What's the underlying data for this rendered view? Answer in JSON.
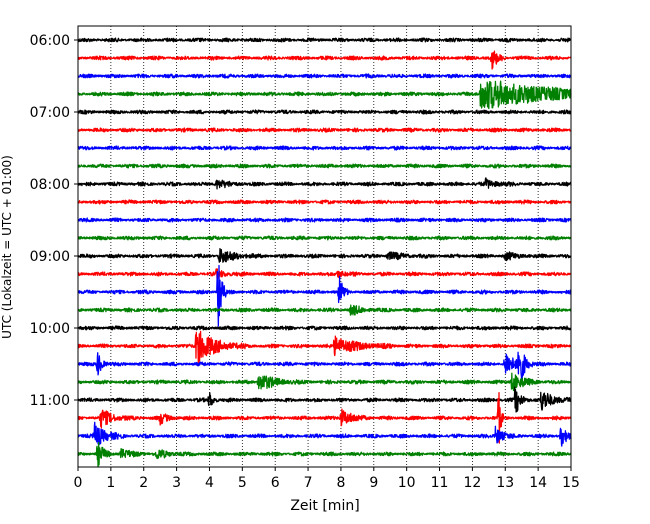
{
  "chart_data": {
    "type": "line",
    "title": "",
    "xlabel": "Zeit  [min]",
    "ylabel": "UTC (Lokalzeit = UTC + 01:00)",
    "xlim": [
      0,
      15
    ],
    "x_ticks": [
      0,
      1,
      2,
      3,
      4,
      5,
      6,
      7,
      8,
      9,
      10,
      11,
      12,
      13,
      14,
      15
    ],
    "y_tick_labels": [
      "06:00",
      "07:00",
      "08:00",
      "09:00",
      "10:00",
      "11:00"
    ],
    "grid": "vertical dotted",
    "legend": "none",
    "start_time": "06:00",
    "trace_interval_min": 15,
    "trace_count": 24,
    "trace_colors": [
      "#000000",
      "#ff0000",
      "#0000ff",
      "#008000"
    ],
    "events": [
      {
        "trace": 1,
        "t": 12.6,
        "amp": 1.1,
        "dur": 0.15
      },
      {
        "trace": 3,
        "t": 12.25,
        "amp": 1.7,
        "dur": 2.0
      },
      {
        "trace": 8,
        "t": 4.2,
        "amp": 0.5,
        "dur": 0.3
      },
      {
        "trace": 8,
        "t": 12.4,
        "amp": 0.5,
        "dur": 0.3
      },
      {
        "trace": 12,
        "t": 4.3,
        "amp": 0.8,
        "dur": 0.4
      },
      {
        "trace": 12,
        "t": 9.4,
        "amp": 0.4,
        "dur": 0.4
      },
      {
        "trace": 12,
        "t": 13.0,
        "amp": 0.4,
        "dur": 0.3
      },
      {
        "trace": 13,
        "t": 4.2,
        "amp": 0.4,
        "dur": 0.3
      },
      {
        "trace": 13,
        "t": 7.9,
        "amp": 0.4,
        "dur": 0.2
      },
      {
        "trace": 14,
        "t": 4.27,
        "amp": 6.0,
        "dur": 0.08
      },
      {
        "trace": 14,
        "t": 7.95,
        "amp": 1.8,
        "dur": 0.1
      },
      {
        "trace": 15,
        "t": 8.3,
        "amp": 0.5,
        "dur": 0.3
      },
      {
        "trace": 17,
        "t": 3.6,
        "amp": 2.0,
        "dur": 0.5
      },
      {
        "trace": 17,
        "t": 7.8,
        "amp": 1.0,
        "dur": 0.6
      },
      {
        "trace": 18,
        "t": 0.6,
        "amp": 1.5,
        "dur": 0.1
      },
      {
        "trace": 18,
        "t": 13.0,
        "amp": 1.6,
        "dur": 0.2
      },
      {
        "trace": 18,
        "t": 13.4,
        "amp": 3.0,
        "dur": 0.15
      },
      {
        "trace": 19,
        "t": 5.5,
        "amp": 1.0,
        "dur": 0.4
      },
      {
        "trace": 19,
        "t": 13.2,
        "amp": 1.0,
        "dur": 0.3
      },
      {
        "trace": 20,
        "t": 4.0,
        "amp": 1.0,
        "dur": 0.1
      },
      {
        "trace": 20,
        "t": 13.3,
        "amp": 1.6,
        "dur": 0.15
      },
      {
        "trace": 20,
        "t": 14.1,
        "amp": 1.2,
        "dur": 0.3
      },
      {
        "trace": 21,
        "t": 0.7,
        "amp": 1.0,
        "dur": 0.3
      },
      {
        "trace": 21,
        "t": 2.5,
        "amp": 0.6,
        "dur": 0.2
      },
      {
        "trace": 21,
        "t": 8.0,
        "amp": 1.0,
        "dur": 0.3
      },
      {
        "trace": 21,
        "t": 12.8,
        "amp": 4.0,
        "dur": 0.05
      },
      {
        "trace": 22,
        "t": 0.5,
        "amp": 1.4,
        "dur": 0.3
      },
      {
        "trace": 22,
        "t": 12.7,
        "amp": 1.0,
        "dur": 0.2
      },
      {
        "trace": 22,
        "t": 14.7,
        "amp": 1.2,
        "dur": 0.15
      },
      {
        "trace": 23,
        "t": 0.6,
        "amp": 1.4,
        "dur": 0.15
      },
      {
        "trace": 23,
        "t": 1.3,
        "amp": 0.5,
        "dur": 0.3
      },
      {
        "trace": 23,
        "t": 2.4,
        "amp": 0.5,
        "dur": 0.3
      }
    ]
  }
}
